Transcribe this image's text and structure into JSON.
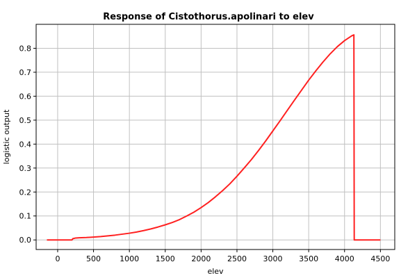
{
  "chart_data": {
    "type": "line",
    "title": "Response of Cistothorus.apolinari to elev",
    "xlabel": "elev",
    "ylabel": "logistic output",
    "xlim": [
      -300,
      4700
    ],
    "ylim": [
      -0.04,
      0.9
    ],
    "x_ticks": [
      0,
      500,
      1000,
      1500,
      2000,
      2500,
      3000,
      3500,
      4000,
      4500
    ],
    "y_ticks": [
      0.0,
      0.1,
      0.2,
      0.3,
      0.4,
      0.5,
      0.6,
      0.7,
      0.8
    ],
    "grid": true,
    "series_color": "#ff2020",
    "series": [
      {
        "x": [
          -150,
          200,
          210,
          250,
          300,
          400,
          500,
          600,
          700,
          800,
          900,
          1000,
          1100,
          1200,
          1300,
          1400,
          1500,
          1600,
          1700,
          1800,
          1900,
          2000,
          2100,
          2200,
          2300,
          2400,
          2500,
          2600,
          2700,
          2800,
          2900,
          3000,
          3100,
          3200,
          3300,
          3400,
          3500,
          3600,
          3700,
          3800,
          3900,
          4000,
          4100,
          4130,
          4135,
          4150,
          4500
        ],
        "y": [
          0.0,
          0.0,
          0.005,
          0.008,
          0.009,
          0.01,
          0.012,
          0.014,
          0.017,
          0.02,
          0.024,
          0.028,
          0.033,
          0.039,
          0.046,
          0.054,
          0.063,
          0.073,
          0.085,
          0.1,
          0.116,
          0.135,
          0.156,
          0.18,
          0.206,
          0.234,
          0.266,
          0.3,
          0.335,
          0.373,
          0.413,
          0.455,
          0.497,
          0.54,
          0.583,
          0.625,
          0.667,
          0.706,
          0.743,
          0.777,
          0.807,
          0.832,
          0.852,
          0.856,
          0.0,
          0.0,
          0.0
        ]
      }
    ]
  }
}
